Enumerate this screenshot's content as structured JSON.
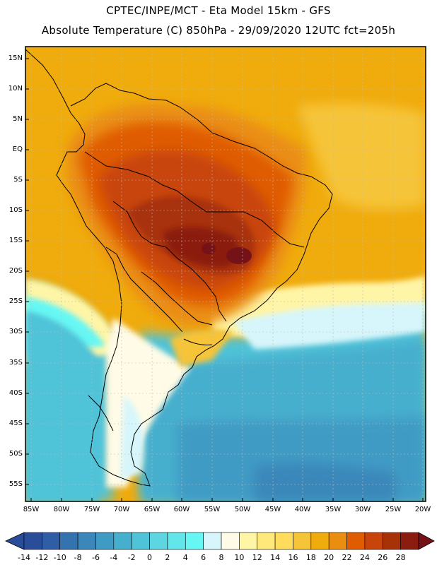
{
  "header": {
    "line1": "CPTEC/INPE/MCT -  Eta Model 15km - GFS",
    "line2": "Absolute Temperature (C) 850hPa - 29/09/2020 12UTC fct=205h"
  },
  "axes": {
    "latitudes": [
      "15N",
      "10N",
      "5N",
      "EQ",
      "5S",
      "10S",
      "15S",
      "20S",
      "25S",
      "30S",
      "35S",
      "40S",
      "45S",
      "50S",
      "55S"
    ],
    "longitudes": [
      "85W",
      "80W",
      "75W",
      "70W",
      "65W",
      "60W",
      "55W",
      "50W",
      "45W",
      "40W",
      "35W",
      "30W",
      "25W",
      "20W"
    ]
  },
  "colorbar": {
    "labels": [
      "-14",
      "-12",
      "-10",
      "-8",
      "-6",
      "-4",
      "-2",
      "0",
      "2",
      "4",
      "6",
      "8",
      "10",
      "12",
      "14",
      "16",
      "18",
      "20",
      "22",
      "24",
      "26",
      "28"
    ],
    "colors": [
      "#2a4d99",
      "#2f5ea6",
      "#3573b0",
      "#3b87ba",
      "#409bc4",
      "#47afce",
      "#4fc3d8",
      "#5dd6e2",
      "#63e6ea",
      "#66f7f4",
      "#d7f6fb",
      "#fffbe6",
      "#fff5a6",
      "#ffe97a",
      "#ffdc5c",
      "#f6c437",
      "#f0ab0c",
      "#ea8e12",
      "#e05c00",
      "#c8440a",
      "#a83208",
      "#8b1c10",
      "#741218"
    ]
  }
}
